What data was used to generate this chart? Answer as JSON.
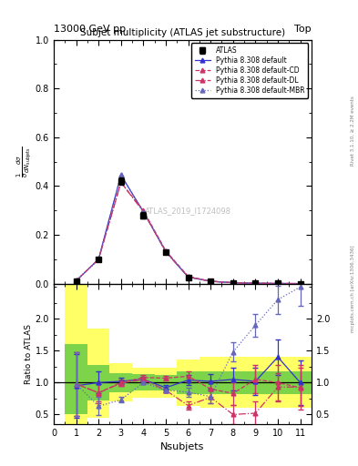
{
  "title_top": "Subjet multiplicity (ATLAS jet substructure)",
  "header_left": "13000 GeV pp",
  "header_right": "Top",
  "ylabel_main": "$\\frac{1}{\\sigma}\\frac{d\\sigma}{dN_{\\mathrm{subjets}}}$",
  "ylabel_ratio": "Ratio to ATLAS",
  "xlabel": "Nsubjets",
  "watermark": "ATLAS_2019_I1724098",
  "right_label": "Rivet 3.1.10, ≥ 2.2M events",
  "right_label2": "mcplots.cern.ch [arXiv:1306.3436]",
  "x_atlas": [
    1,
    2,
    3,
    4,
    5,
    6,
    7,
    8,
    9,
    10,
    11
  ],
  "y_atlas": [
    0.01,
    0.1,
    0.42,
    0.28,
    0.13,
    0.025,
    0.01,
    0.004,
    0.002,
    0.001,
    0.0005
  ],
  "y_atlas_err": [
    0.004,
    0.008,
    0.015,
    0.012,
    0.008,
    0.004,
    0.002,
    0.001,
    0.0008,
    0.0004,
    0.0002
  ],
  "x_pythia": [
    1,
    2,
    3,
    4,
    5,
    6,
    7,
    8,
    9,
    10,
    11
  ],
  "y_default": [
    0.012,
    0.1,
    0.445,
    0.295,
    0.132,
    0.027,
    0.01,
    0.004,
    0.002,
    0.001,
    0.0005
  ],
  "y_default_cd": [
    0.012,
    0.1,
    0.415,
    0.3,
    0.135,
    0.03,
    0.01,
    0.004,
    0.002,
    0.001,
    0.0005
  ],
  "y_default_dl": [
    0.012,
    0.1,
    0.415,
    0.295,
    0.13,
    0.028,
    0.01,
    0.004,
    0.002,
    0.001,
    0.0005
  ],
  "y_default_mbr": [
    0.012,
    0.1,
    0.445,
    0.295,
    0.132,
    0.027,
    0.01,
    0.004,
    0.002,
    0.001,
    0.0005
  ],
  "color_default": "#3333cc",
  "color_cd": "#cc3366",
  "color_dl": "#cc3366",
  "color_mbr": "#6666bb",
  "xlim": [
    0,
    11.5
  ],
  "ylim_main": [
    0.0,
    1.0
  ],
  "ylim_ratio": [
    0.35,
    2.55
  ],
  "x_ratio": [
    1,
    2,
    3,
    4,
    5,
    6,
    7,
    8,
    9,
    10,
    11
  ],
  "y_def_ratio": [
    0.95,
    1.0,
    1.02,
    1.05,
    0.92,
    1.04,
    1.02,
    1.05,
    1.02,
    1.4,
    1.0
  ],
  "y_cd_ratio": [
    0.98,
    0.84,
    1.0,
    1.08,
    1.07,
    1.1,
    0.9,
    0.83,
    1.05,
    1.0,
    0.92
  ],
  "y_dl_ratio": [
    0.98,
    0.84,
    0.99,
    1.05,
    0.88,
    0.64,
    0.77,
    0.5,
    0.52,
    0.93,
    0.93
  ],
  "y_mbr_ratio": [
    0.98,
    0.63,
    0.73,
    1.0,
    0.88,
    0.85,
    0.78,
    1.48,
    1.9,
    2.3,
    2.5
  ],
  "yerr_def": [
    0.5,
    0.17,
    0.05,
    0.04,
    0.04,
    0.08,
    0.12,
    0.18,
    0.22,
    0.28,
    0.35
  ],
  "yerr_cd": [
    0.5,
    0.17,
    0.05,
    0.04,
    0.04,
    0.08,
    0.12,
    0.18,
    0.22,
    0.28,
    0.35
  ],
  "yerr_dl": [
    0.5,
    0.14,
    0.04,
    0.03,
    0.03,
    0.07,
    0.1,
    0.15,
    0.18,
    0.22,
    0.3
  ],
  "yerr_mbr": [
    0.5,
    0.14,
    0.04,
    0.03,
    0.03,
    0.07,
    0.1,
    0.15,
    0.18,
    0.22,
    0.3
  ],
  "band_edges": [
    0.5,
    1.5,
    2.5,
    3.5,
    4.5,
    5.5,
    6.5,
    7.5,
    8.5,
    9.5,
    10.5,
    11.5
  ],
  "green_lo": [
    0.5,
    0.72,
    0.85,
    0.87,
    0.88,
    0.82,
    0.82,
    0.82,
    0.82,
    0.82,
    0.82
  ],
  "green_hi": [
    1.6,
    1.28,
    1.15,
    1.13,
    1.12,
    1.18,
    1.18,
    1.18,
    1.18,
    1.18,
    1.18
  ],
  "yellow_lo": [
    0.35,
    0.45,
    0.7,
    0.76,
    0.76,
    0.64,
    0.6,
    0.6,
    0.6,
    0.6,
    0.6
  ],
  "yellow_hi": [
    2.55,
    1.85,
    1.3,
    1.24,
    1.24,
    1.36,
    1.4,
    1.4,
    1.4,
    1.4,
    1.4
  ]
}
